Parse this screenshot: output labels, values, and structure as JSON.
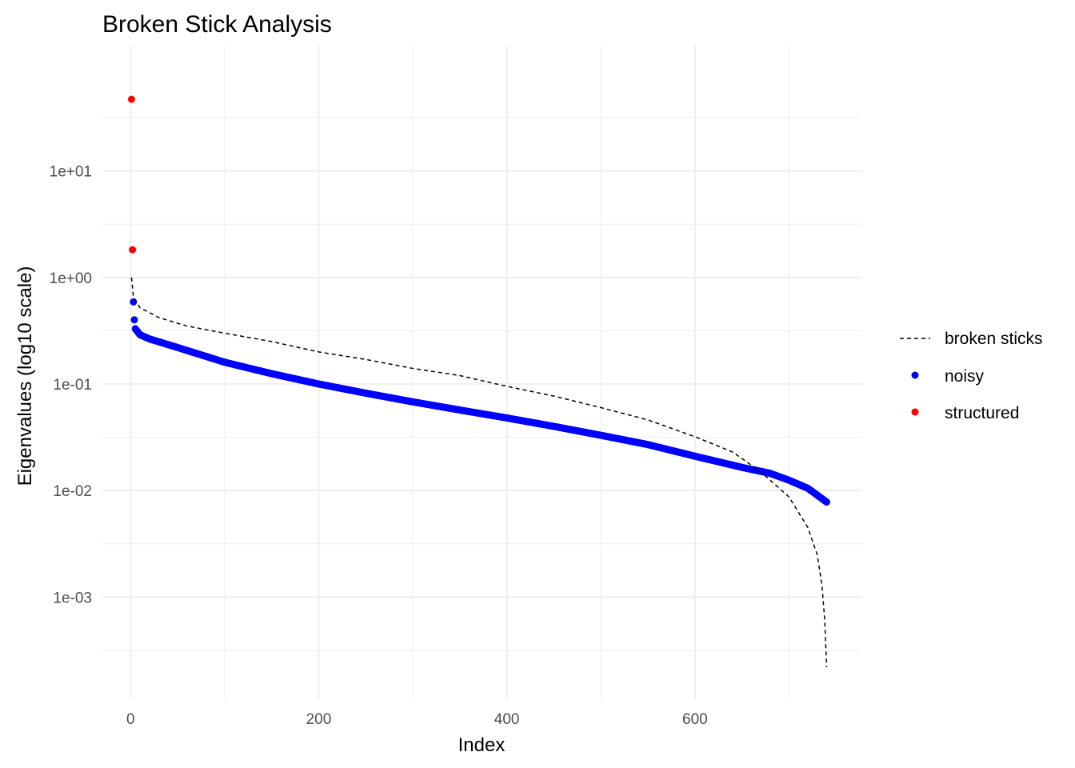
{
  "chart_data": {
    "type": "scatter",
    "title": "Broken Stick Analysis",
    "xlabel": "Index",
    "ylabel": "Eigenvalues (log10 scale)",
    "x_ticks": [
      0,
      200,
      400,
      600
    ],
    "x_tick_labels": [
      "0",
      "200",
      "400",
      "600"
    ],
    "xlim": [
      -30,
      777
    ],
    "y_scale": "log10",
    "y_ticks": [
      0.001,
      0.01,
      0.1,
      1,
      10
    ],
    "y_tick_labels": [
      "1e-03",
      "1e-02",
      "1e-01",
      "1e+00",
      "1e+01"
    ],
    "ylim": [
      0.00011,
      150
    ],
    "grid": true,
    "legend_position": "right",
    "legend": [
      {
        "label": "broken sticks",
        "kind": "dashed-line",
        "color": "#000000"
      },
      {
        "label": "noisy",
        "kind": "point",
        "color": "#0000ff"
      },
      {
        "label": "structured",
        "kind": "point",
        "color": "#ff0000"
      }
    ],
    "series": [
      {
        "name": "structured",
        "kind": "points",
        "color": "#ff0000",
        "points": [
          [
            1,
            47.0
          ],
          [
            2,
            1.82
          ]
        ]
      },
      {
        "name": "noisy",
        "kind": "points",
        "color": "#0000ff",
        "points": [
          [
            3,
            0.59
          ],
          [
            4,
            0.4
          ],
          [
            5,
            0.33
          ],
          [
            10,
            0.29
          ],
          [
            20,
            0.265
          ],
          [
            50,
            0.22
          ],
          [
            100,
            0.16
          ],
          [
            150,
            0.125
          ],
          [
            200,
            0.1
          ],
          [
            250,
            0.082
          ],
          [
            300,
            0.068
          ],
          [
            350,
            0.057
          ],
          [
            400,
            0.048
          ],
          [
            450,
            0.04
          ],
          [
            500,
            0.033
          ],
          [
            550,
            0.027
          ],
          [
            600,
            0.021
          ],
          [
            650,
            0.0165
          ],
          [
            680,
            0.0145
          ],
          [
            700,
            0.0125
          ],
          [
            720,
            0.0105
          ],
          [
            740,
            0.0078
          ]
        ]
      },
      {
        "name": "broken sticks",
        "kind": "dashed-line",
        "color": "#000000",
        "points": [
          [
            1,
            1.0
          ],
          [
            3,
            0.65
          ],
          [
            10,
            0.52
          ],
          [
            30,
            0.42
          ],
          [
            60,
            0.35
          ],
          [
            100,
            0.3
          ],
          [
            150,
            0.25
          ],
          [
            200,
            0.2
          ],
          [
            250,
            0.17
          ],
          [
            300,
            0.14
          ],
          [
            350,
            0.12
          ],
          [
            400,
            0.095
          ],
          [
            450,
            0.077
          ],
          [
            500,
            0.06
          ],
          [
            550,
            0.046
          ],
          [
            600,
            0.032
          ],
          [
            640,
            0.023
          ],
          [
            670,
            0.015
          ],
          [
            700,
            0.0087
          ],
          [
            720,
            0.0045
          ],
          [
            730,
            0.0025
          ],
          [
            735,
            0.0013
          ],
          [
            738,
            0.0006
          ],
          [
            740,
            0.00022
          ]
        ]
      }
    ]
  }
}
